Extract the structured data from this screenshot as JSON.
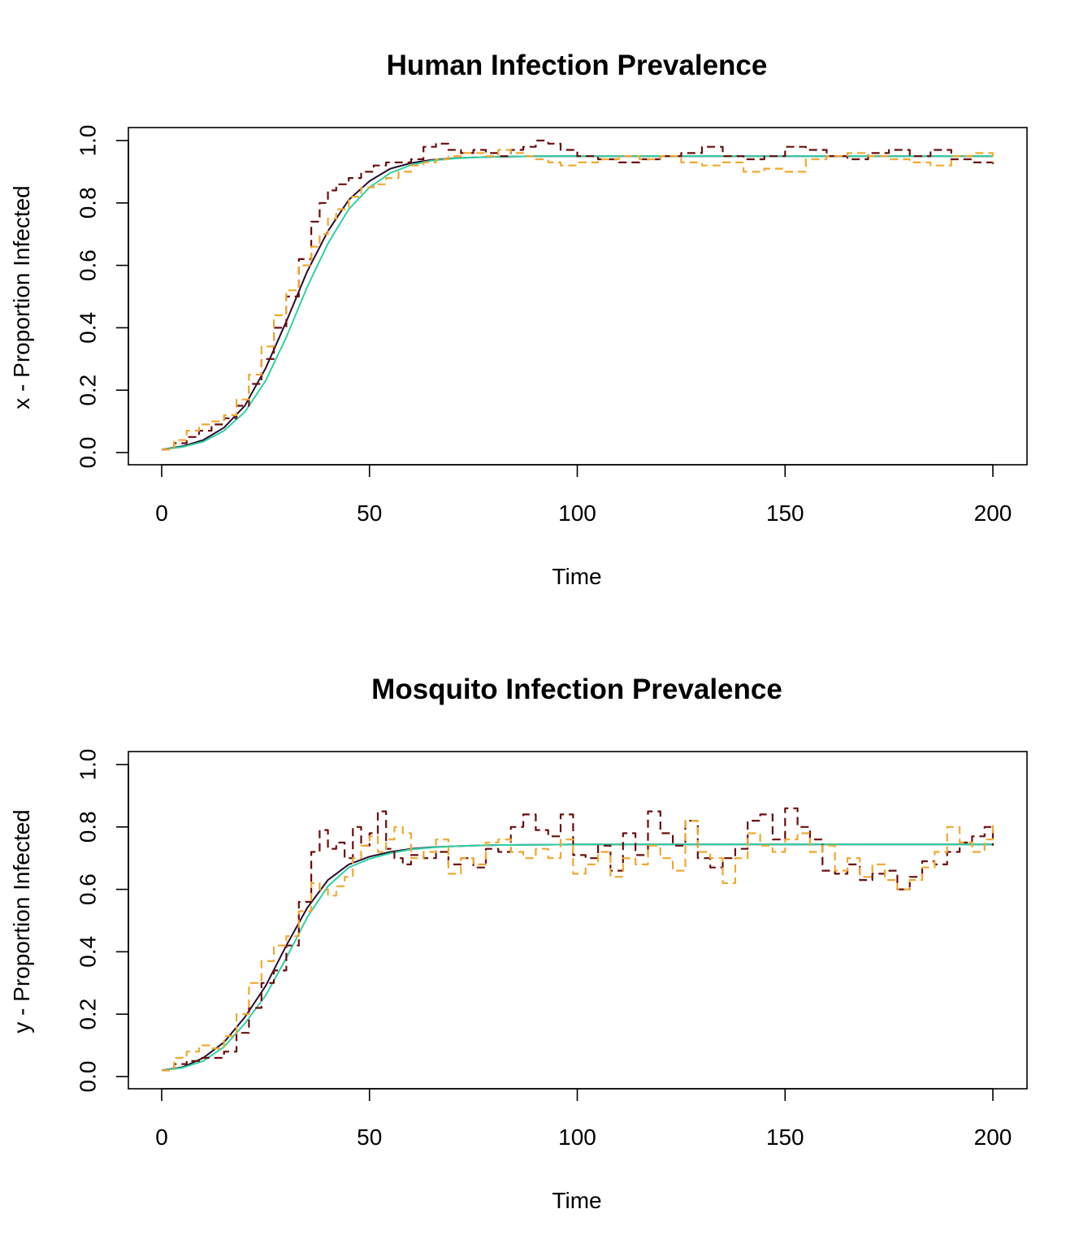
{
  "chart_data": [
    {
      "type": "line",
      "title": "Human Infection Prevalence",
      "xlabel": "Time",
      "ylabel": "x - Proportion Infected",
      "xlim": [
        0,
        200
      ],
      "ylim": [
        0,
        1
      ],
      "xticks": [
        "0",
        "50",
        "100",
        "150",
        "200"
      ],
      "yticks": [
        "0.0",
        "0.2",
        "0.4",
        "0.6",
        "0.8",
        "1.0"
      ],
      "grid": false,
      "legend": "none",
      "series": [
        {
          "style": "solid",
          "color": "#2a0e2e",
          "x": [
            0,
            5,
            10,
            15,
            20,
            25,
            30,
            35,
            40,
            45,
            50,
            55,
            60,
            65,
            70,
            75,
            80,
            85,
            90,
            95,
            100,
            110,
            120,
            130,
            140,
            150,
            160,
            170,
            180,
            190,
            200
          ],
          "y": [
            0.01,
            0.02,
            0.04,
            0.08,
            0.15,
            0.27,
            0.42,
            0.58,
            0.71,
            0.81,
            0.87,
            0.91,
            0.928,
            0.938,
            0.943,
            0.946,
            0.948,
            0.949,
            0.95,
            0.95,
            0.95,
            0.95,
            0.95,
            0.95,
            0.95,
            0.95,
            0.95,
            0.95,
            0.95,
            0.95,
            0.95
          ]
        },
        {
          "style": "solid",
          "color": "#2fd0a5",
          "x": [
            0,
            5,
            10,
            15,
            20,
            25,
            30,
            35,
            40,
            45,
            50,
            55,
            60,
            65,
            70,
            75,
            80,
            85,
            90,
            95,
            100,
            110,
            120,
            130,
            140,
            150,
            160,
            170,
            180,
            190,
            200
          ],
          "y": [
            0.01,
            0.018,
            0.035,
            0.07,
            0.13,
            0.23,
            0.37,
            0.53,
            0.67,
            0.78,
            0.85,
            0.896,
            0.922,
            0.936,
            0.942,
            0.946,
            0.948,
            0.949,
            0.95,
            0.95,
            0.95,
            0.95,
            0.95,
            0.95,
            0.95,
            0.95,
            0.95,
            0.95,
            0.95,
            0.95,
            0.95
          ]
        },
        {
          "style": "dashed",
          "color": "#6b0d0d",
          "x": [
            0,
            3,
            6,
            9,
            12,
            15,
            18,
            21,
            24,
            27,
            30,
            33,
            36,
            38,
            40,
            42,
            45,
            48,
            51,
            54,
            57,
            60,
            63,
            66,
            69,
            72,
            75,
            78,
            81,
            84,
            87,
            90,
            93,
            96,
            100,
            105,
            110,
            115,
            120,
            125,
            130,
            135,
            140,
            145,
            150,
            155,
            160,
            165,
            170,
            175,
            180,
            185,
            190,
            195,
            200
          ],
          "y": [
            0.01,
            0.03,
            0.05,
            0.07,
            0.09,
            0.11,
            0.15,
            0.22,
            0.3,
            0.4,
            0.5,
            0.62,
            0.74,
            0.8,
            0.84,
            0.86,
            0.88,
            0.9,
            0.92,
            0.93,
            0.93,
            0.94,
            0.98,
            0.99,
            0.97,
            0.96,
            0.97,
            0.96,
            0.95,
            0.97,
            0.98,
            1.0,
            0.99,
            0.97,
            0.95,
            0.94,
            0.93,
            0.94,
            0.95,
            0.96,
            0.98,
            0.95,
            0.94,
            0.95,
            0.98,
            0.97,
            0.95,
            0.94,
            0.96,
            0.97,
            0.95,
            0.97,
            0.94,
            0.93,
            0.92
          ]
        },
        {
          "style": "dashed",
          "color": "#f0a830",
          "x": [
            0,
            3,
            6,
            9,
            12,
            15,
            18,
            21,
            24,
            27,
            30,
            33,
            36,
            38,
            40,
            42,
            45,
            48,
            51,
            54,
            57,
            60,
            63,
            66,
            69,
            72,
            75,
            78,
            81,
            84,
            87,
            90,
            93,
            96,
            100,
            105,
            110,
            115,
            120,
            125,
            130,
            135,
            140,
            145,
            150,
            155,
            160,
            165,
            170,
            175,
            180,
            185,
            190,
            195,
            200
          ],
          "y": [
            0.01,
            0.04,
            0.07,
            0.09,
            0.1,
            0.12,
            0.17,
            0.25,
            0.34,
            0.44,
            0.52,
            0.6,
            0.66,
            0.7,
            0.75,
            0.78,
            0.82,
            0.85,
            0.86,
            0.88,
            0.9,
            0.92,
            0.93,
            0.94,
            0.95,
            0.96,
            0.96,
            0.95,
            0.97,
            0.96,
            0.95,
            0.94,
            0.93,
            0.92,
            0.93,
            0.94,
            0.95,
            0.94,
            0.95,
            0.93,
            0.92,
            0.93,
            0.9,
            0.91,
            0.9,
            0.94,
            0.95,
            0.96,
            0.95,
            0.94,
            0.93,
            0.92,
            0.95,
            0.96,
            0.93
          ]
        }
      ]
    },
    {
      "type": "line",
      "title": "Mosquito Infection Prevalence",
      "xlabel": "Time",
      "ylabel": "y - Proportion Infected",
      "xlim": [
        0,
        200
      ],
      "ylim": [
        0,
        1
      ],
      "xticks": [
        "0",
        "50",
        "100",
        "150",
        "200"
      ],
      "yticks": [
        "0.0",
        "0.2",
        "0.4",
        "0.6",
        "0.8",
        "1.0"
      ],
      "grid": false,
      "legend": "none",
      "series": [
        {
          "style": "solid",
          "color": "#2a0e2e",
          "x": [
            0,
            5,
            10,
            15,
            20,
            25,
            30,
            35,
            40,
            45,
            50,
            55,
            60,
            65,
            70,
            75,
            80,
            90,
            100,
            120,
            140,
            160,
            180,
            200
          ],
          "y": [
            0.02,
            0.03,
            0.06,
            0.11,
            0.19,
            0.29,
            0.42,
            0.54,
            0.63,
            0.68,
            0.705,
            0.72,
            0.73,
            0.735,
            0.738,
            0.74,
            0.742,
            0.743,
            0.744,
            0.744,
            0.744,
            0.744,
            0.744,
            0.744
          ]
        },
        {
          "style": "solid",
          "color": "#2fd0a5",
          "x": [
            0,
            5,
            10,
            15,
            20,
            25,
            30,
            35,
            40,
            45,
            50,
            55,
            60,
            65,
            70,
            75,
            80,
            90,
            100,
            120,
            140,
            160,
            180,
            200
          ],
          "y": [
            0.02,
            0.028,
            0.05,
            0.095,
            0.17,
            0.26,
            0.38,
            0.51,
            0.61,
            0.67,
            0.698,
            0.716,
            0.728,
            0.734,
            0.738,
            0.74,
            0.742,
            0.743,
            0.744,
            0.744,
            0.744,
            0.744,
            0.744,
            0.744
          ]
        },
        {
          "style": "dashed",
          "color": "#6b0d0d",
          "x": [
            0,
            3,
            6,
            9,
            12,
            15,
            18,
            21,
            24,
            27,
            30,
            33,
            36,
            38,
            40,
            42,
            44,
            46,
            48,
            50,
            52,
            54,
            56,
            58,
            60,
            63,
            66,
            69,
            72,
            75,
            78,
            81,
            84,
            87,
            90,
            93,
            96,
            99,
            102,
            105,
            108,
            111,
            114,
            117,
            120,
            123,
            126,
            129,
            132,
            135,
            138,
            141,
            144,
            147,
            150,
            153,
            156,
            159,
            162,
            165,
            168,
            171,
            174,
            177,
            180,
            183,
            186,
            189,
            192,
            195,
            198,
            200
          ],
          "y": [
            0.02,
            0.04,
            0.05,
            0.06,
            0.06,
            0.08,
            0.14,
            0.22,
            0.3,
            0.34,
            0.42,
            0.56,
            0.72,
            0.79,
            0.73,
            0.75,
            0.7,
            0.8,
            0.74,
            0.78,
            0.85,
            0.73,
            0.7,
            0.68,
            0.71,
            0.7,
            0.72,
            0.68,
            0.7,
            0.67,
            0.73,
            0.72,
            0.8,
            0.84,
            0.79,
            0.77,
            0.84,
            0.71,
            0.7,
            0.74,
            0.66,
            0.78,
            0.71,
            0.85,
            0.78,
            0.74,
            0.82,
            0.7,
            0.67,
            0.7,
            0.73,
            0.82,
            0.84,
            0.76,
            0.86,
            0.8,
            0.76,
            0.66,
            0.65,
            0.68,
            0.63,
            0.65,
            0.66,
            0.6,
            0.64,
            0.69,
            0.68,
            0.72,
            0.75,
            0.77,
            0.8,
            0.74
          ]
        },
        {
          "style": "dashed",
          "color": "#f0a830",
          "x": [
            0,
            3,
            6,
            9,
            12,
            15,
            18,
            21,
            24,
            27,
            30,
            33,
            36,
            38,
            40,
            42,
            44,
            46,
            48,
            50,
            52,
            54,
            56,
            58,
            60,
            63,
            66,
            69,
            72,
            75,
            78,
            81,
            84,
            87,
            90,
            93,
            96,
            99,
            102,
            105,
            108,
            111,
            114,
            117,
            120,
            123,
            126,
            129,
            132,
            135,
            138,
            141,
            144,
            147,
            150,
            153,
            156,
            159,
            162,
            165,
            168,
            171,
            174,
            177,
            180,
            183,
            186,
            189,
            192,
            195,
            198,
            200
          ],
          "y": [
            0.02,
            0.06,
            0.08,
            0.1,
            0.09,
            0.13,
            0.2,
            0.3,
            0.37,
            0.42,
            0.45,
            0.53,
            0.62,
            0.6,
            0.58,
            0.61,
            0.64,
            0.7,
            0.74,
            0.77,
            0.72,
            0.76,
            0.8,
            0.78,
            0.7,
            0.72,
            0.76,
            0.65,
            0.7,
            0.68,
            0.75,
            0.76,
            0.72,
            0.7,
            0.73,
            0.7,
            0.76,
            0.65,
            0.68,
            0.72,
            0.64,
            0.7,
            0.68,
            0.74,
            0.7,
            0.66,
            0.82,
            0.72,
            0.7,
            0.62,
            0.7,
            0.78,
            0.74,
            0.72,
            0.76,
            0.78,
            0.72,
            0.74,
            0.66,
            0.7,
            0.64,
            0.68,
            0.63,
            0.6,
            0.63,
            0.67,
            0.72,
            0.8,
            0.75,
            0.72,
            0.76,
            0.82
          ]
        }
      ]
    }
  ]
}
